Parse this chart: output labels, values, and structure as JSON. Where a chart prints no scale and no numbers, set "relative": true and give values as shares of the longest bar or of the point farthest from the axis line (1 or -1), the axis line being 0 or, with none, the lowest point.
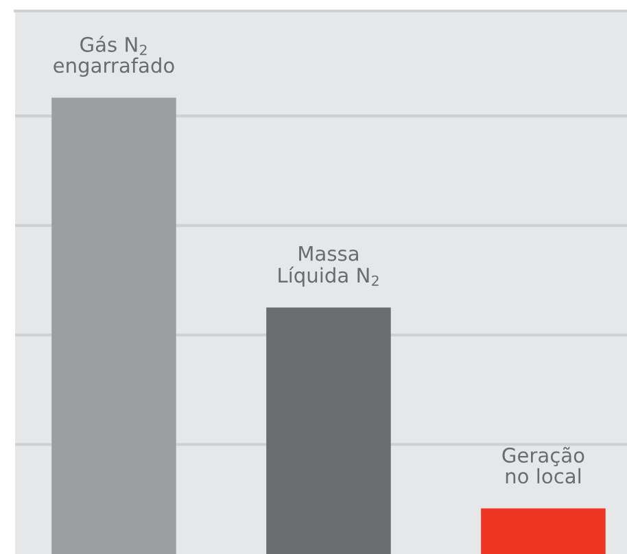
{
  "chart_data": {
    "type": "bar",
    "relative": true,
    "grid": "y",
    "categories": [
      "Gás N$_{2}$\nengarrafado",
      "Massa\nLíquida N$_{2}$",
      "Geração\nno local"
    ],
    "values": [
      1,
      0.54,
      0.1
    ],
    "colors": [
      "#9d9ea1",
      "#6b6c70",
      "#ee3524"
    ]
  }
}
